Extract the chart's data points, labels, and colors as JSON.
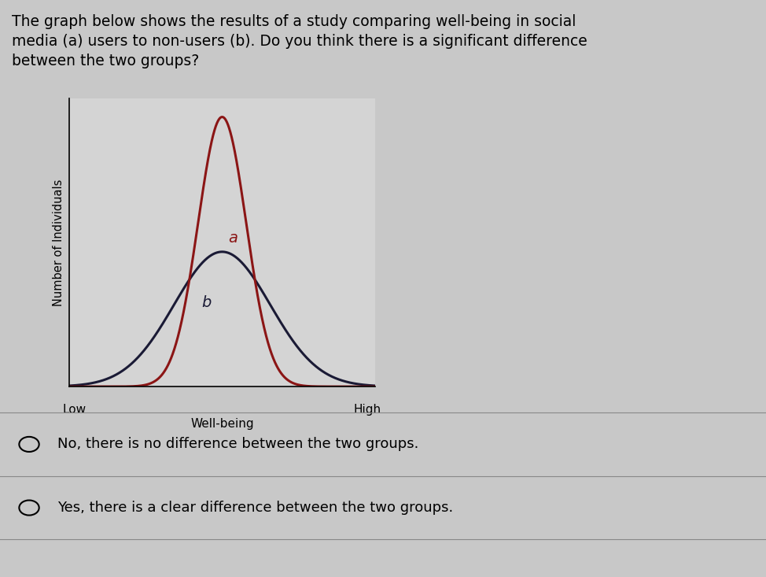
{
  "title_line1": "The graph below shows the results of a study comparing well-being in social",
  "title_line2": "media (a) users to non-users (b). Do you think there is a significant difference",
  "title_line3": "between the two groups?",
  "title_fontsize": 13.5,
  "ylabel": "Number of Individuals",
  "xlabel_low": "Low",
  "xlabel_high": "High",
  "xlabel_center": "Well-being",
  "curve_a_color": "#8B1515",
  "curve_b_color": "#1a1a35",
  "curve_a_mean": 0.0,
  "curve_a_std": 0.55,
  "curve_b_mean": 0.0,
  "curve_b_std": 1.1,
  "label_a": "a",
  "label_b": "b",
  "label_a_color": "#8B1515",
  "label_b_color": "#1a1a35",
  "background_color": "#c8c8c8",
  "plot_bg_color": "#d4d4d4",
  "option1": "No, there is no difference between the two groups.",
  "option2": "Yes, there is a clear difference between the two groups.",
  "option_fontsize": 13
}
